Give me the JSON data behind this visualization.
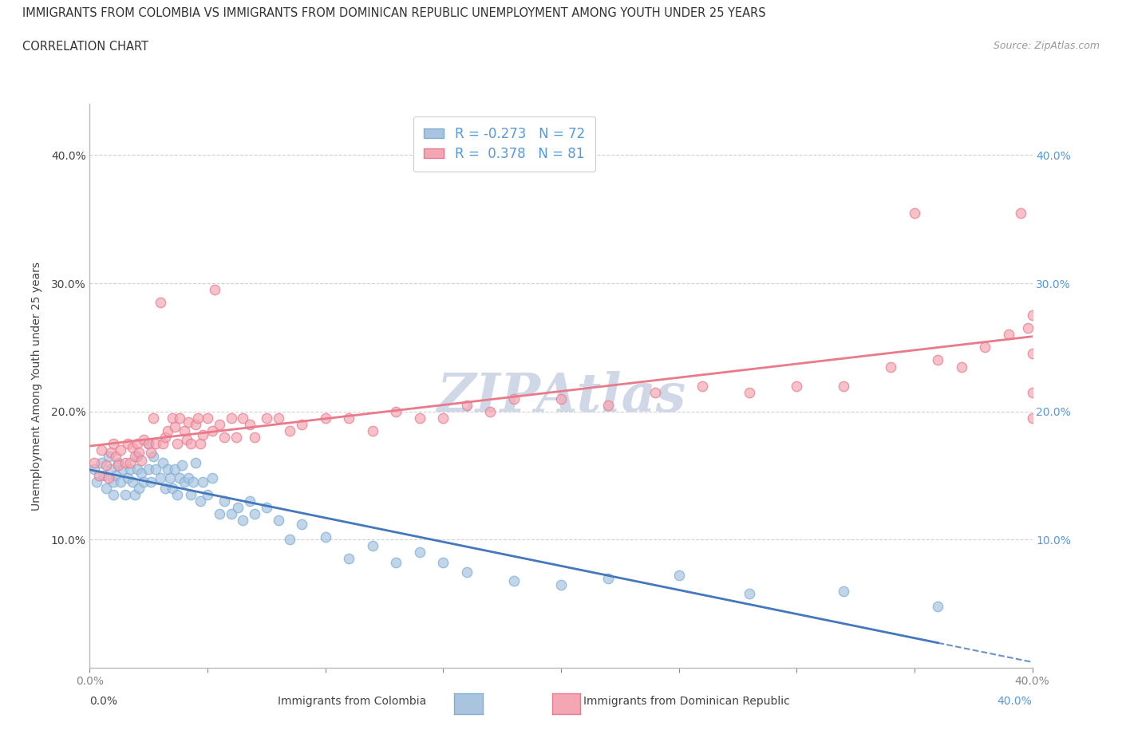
{
  "title_line1": "IMMIGRANTS FROM COLOMBIA VS IMMIGRANTS FROM DOMINICAN REPUBLIC UNEMPLOYMENT AMONG YOUTH UNDER 25 YEARS",
  "title_line2": "CORRELATION CHART",
  "source_text": "Source: ZipAtlas.com",
  "ylabel": "Unemployment Among Youth under 25 years",
  "xlim": [
    0.0,
    0.4
  ],
  "ylim": [
    0.0,
    0.44
  ],
  "x_ticks": [
    0.0,
    0.05,
    0.1,
    0.15,
    0.2,
    0.25,
    0.3,
    0.35,
    0.4
  ],
  "x_tick_labels_bottom": [
    "0.0%",
    "",
    "",
    "",
    "",
    "",
    "",
    "",
    "40.0%"
  ],
  "y_ticks": [
    0.1,
    0.2,
    0.3,
    0.4
  ],
  "y_tick_labels_left": [
    "10.0%",
    "20.0%",
    "30.0%",
    "40.0%"
  ],
  "y_tick_labels_right": [
    "10.0%",
    "20.0%",
    "30.0%",
    "40.0%"
  ],
  "colombia_color": "#aac4e0",
  "colombia_edge_color": "#7bafd4",
  "dominican_color": "#f4a7b3",
  "dominican_edge_color": "#e87a90",
  "colombia_line_color": "#4477bb",
  "dominican_line_color": "#e87a8a",
  "colombia_R": -0.273,
  "colombia_N": 72,
  "dominican_R": 0.378,
  "dominican_N": 81,
  "watermark": "ZIPAtlas",
  "bg_color": "#ffffff",
  "grid_color": "#cccccc",
  "title_fontsize": 11,
  "label_fontsize": 10,
  "tick_fontsize": 10,
  "watermark_color": "#d0d8e8",
  "right_tick_color": "#5599dd",
  "colombia_scatter_x": [
    0.002,
    0.003,
    0.005,
    0.006,
    0.007,
    0.008,
    0.009,
    0.01,
    0.01,
    0.011,
    0.012,
    0.013,
    0.014,
    0.015,
    0.016,
    0.017,
    0.018,
    0.019,
    0.02,
    0.02,
    0.021,
    0.022,
    0.023,
    0.025,
    0.025,
    0.026,
    0.027,
    0.028,
    0.03,
    0.031,
    0.032,
    0.033,
    0.034,
    0.035,
    0.036,
    0.037,
    0.038,
    0.039,
    0.04,
    0.042,
    0.043,
    0.044,
    0.045,
    0.047,
    0.048,
    0.05,
    0.052,
    0.055,
    0.057,
    0.06,
    0.063,
    0.065,
    0.068,
    0.07,
    0.075,
    0.08,
    0.085,
    0.09,
    0.1,
    0.11,
    0.12,
    0.13,
    0.14,
    0.15,
    0.16,
    0.18,
    0.2,
    0.22,
    0.25,
    0.28,
    0.32,
    0.36
  ],
  "colombia_scatter_y": [
    0.155,
    0.145,
    0.16,
    0.15,
    0.14,
    0.165,
    0.155,
    0.145,
    0.135,
    0.15,
    0.16,
    0.145,
    0.155,
    0.135,
    0.148,
    0.155,
    0.145,
    0.135,
    0.155,
    0.165,
    0.14,
    0.152,
    0.145,
    0.175,
    0.155,
    0.145,
    0.165,
    0.155,
    0.148,
    0.16,
    0.14,
    0.155,
    0.148,
    0.14,
    0.155,
    0.135,
    0.148,
    0.158,
    0.145,
    0.148,
    0.135,
    0.145,
    0.16,
    0.13,
    0.145,
    0.135,
    0.148,
    0.12,
    0.13,
    0.12,
    0.125,
    0.115,
    0.13,
    0.12,
    0.125,
    0.115,
    0.1,
    0.112,
    0.102,
    0.085,
    0.095,
    0.082,
    0.09,
    0.082,
    0.075,
    0.068,
    0.065,
    0.07,
    0.072,
    0.058,
    0.06,
    0.048
  ],
  "dominican_scatter_x": [
    0.002,
    0.004,
    0.005,
    0.007,
    0.008,
    0.009,
    0.01,
    0.011,
    0.012,
    0.013,
    0.015,
    0.016,
    0.017,
    0.018,
    0.019,
    0.02,
    0.021,
    0.022,
    0.023,
    0.025,
    0.026,
    0.027,
    0.028,
    0.03,
    0.031,
    0.032,
    0.033,
    0.035,
    0.036,
    0.037,
    0.038,
    0.04,
    0.041,
    0.042,
    0.043,
    0.045,
    0.046,
    0.047,
    0.048,
    0.05,
    0.052,
    0.053,
    0.055,
    0.057,
    0.06,
    0.062,
    0.065,
    0.068,
    0.07,
    0.075,
    0.08,
    0.085,
    0.09,
    0.1,
    0.11,
    0.12,
    0.13,
    0.14,
    0.15,
    0.16,
    0.17,
    0.18,
    0.2,
    0.22,
    0.24,
    0.26,
    0.28,
    0.3,
    0.32,
    0.34,
    0.35,
    0.36,
    0.37,
    0.38,
    0.39,
    0.395,
    0.398,
    0.4,
    0.4,
    0.4,
    0.4
  ],
  "dominican_scatter_y": [
    0.16,
    0.15,
    0.17,
    0.158,
    0.148,
    0.168,
    0.175,
    0.165,
    0.158,
    0.17,
    0.16,
    0.175,
    0.16,
    0.172,
    0.165,
    0.175,
    0.168,
    0.162,
    0.178,
    0.175,
    0.168,
    0.195,
    0.175,
    0.285,
    0.175,
    0.18,
    0.185,
    0.195,
    0.188,
    0.175,
    0.195,
    0.185,
    0.178,
    0.192,
    0.175,
    0.19,
    0.195,
    0.175,
    0.182,
    0.195,
    0.185,
    0.295,
    0.19,
    0.18,
    0.195,
    0.18,
    0.195,
    0.19,
    0.18,
    0.195,
    0.195,
    0.185,
    0.19,
    0.195,
    0.195,
    0.185,
    0.2,
    0.195,
    0.195,
    0.205,
    0.2,
    0.21,
    0.21,
    0.205,
    0.215,
    0.22,
    0.215,
    0.22,
    0.22,
    0.235,
    0.355,
    0.24,
    0.235,
    0.25,
    0.26,
    0.355,
    0.265,
    0.195,
    0.215,
    0.245,
    0.275
  ]
}
